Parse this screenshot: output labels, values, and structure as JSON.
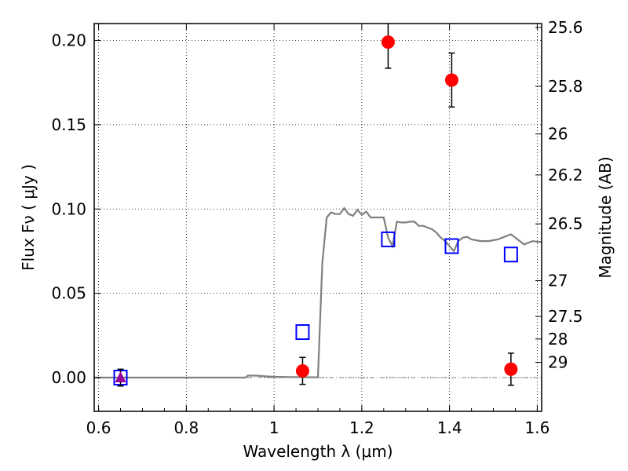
{
  "chart_data": {
    "type": "scatter",
    "xlabel": "Wavelength  λ (μm)",
    "ylabel": "Flux  Fν  ( μJy )",
    "ylabel_right": "Magnitude (AB)",
    "xlim": [
      0.59,
      1.61
    ],
    "ylim": [
      -0.02,
      0.21
    ],
    "grid": true,
    "x_ticks": [
      0.6,
      0.8,
      1.0,
      1.2,
      1.4,
      1.6
    ],
    "x_tick_labels": [
      "0.6",
      "0.8",
      "1",
      "1.2",
      "1.4",
      "1.6"
    ],
    "y_ticks": [
      0.0,
      0.05,
      0.1,
      0.15,
      0.2
    ],
    "y_tick_labels": [
      "0.00",
      "0.05",
      "0.10",
      "0.15",
      "0.20"
    ],
    "right_ticks": [
      {
        "label": "25.6",
        "flux": 0.2077
      },
      {
        "label": "25.8",
        "flux": 0.1728
      },
      {
        "label": "26",
        "flux": 0.1445
      },
      {
        "label": "26.2",
        "flux": 0.1202
      },
      {
        "label": "26.5",
        "flux": 0.0912
      },
      {
        "label": "27",
        "flux": 0.0575
      },
      {
        "label": "27.5",
        "flux": 0.0363
      },
      {
        "label": "28",
        "flux": 0.0229
      },
      {
        "label": "29",
        "flux": 0.0091
      }
    ],
    "series": [
      {
        "kind": "line",
        "color": "#808080",
        "points": [
          [
            0.59,
            0.0
          ],
          [
            0.7,
            0.0
          ],
          [
            0.8,
            0.0
          ],
          [
            0.9,
            0.0
          ],
          [
            0.935,
            0.0
          ],
          [
            0.94,
            0.0012
          ],
          [
            0.96,
            0.0012
          ],
          [
            0.98,
            0.0008
          ],
          [
            1.0,
            0.0005
          ],
          [
            1.04,
            0.0003
          ],
          [
            1.08,
            0.0002
          ],
          [
            1.1,
            0.0002
          ],
          [
            1.11,
            0.068
          ],
          [
            1.12,
            0.095
          ],
          [
            1.13,
            0.098
          ],
          [
            1.14,
            0.097
          ],
          [
            1.15,
            0.097
          ],
          [
            1.16,
            0.1005
          ],
          [
            1.17,
            0.097
          ],
          [
            1.18,
            0.096
          ],
          [
            1.19,
            0.0995
          ],
          [
            1.2,
            0.0965
          ],
          [
            1.21,
            0.0985
          ],
          [
            1.22,
            0.095
          ],
          [
            1.23,
            0.095
          ],
          [
            1.24,
            0.095
          ],
          [
            1.25,
            0.095
          ],
          [
            1.26,
            0.083
          ],
          [
            1.27,
            0.078
          ],
          [
            1.28,
            0.0925
          ],
          [
            1.29,
            0.092
          ],
          [
            1.3,
            0.092
          ],
          [
            1.31,
            0.0925
          ],
          [
            1.32,
            0.0925
          ],
          [
            1.33,
            0.09
          ],
          [
            1.34,
            0.09
          ],
          [
            1.35,
            0.089
          ],
          [
            1.36,
            0.088
          ],
          [
            1.37,
            0.086
          ],
          [
            1.38,
            0.083
          ],
          [
            1.39,
            0.081
          ],
          [
            1.4,
            0.078
          ],
          [
            1.41,
            0.075
          ],
          [
            1.42,
            0.081
          ],
          [
            1.43,
            0.083
          ],
          [
            1.44,
            0.0835
          ],
          [
            1.45,
            0.082
          ],
          [
            1.46,
            0.0815
          ],
          [
            1.47,
            0.081
          ],
          [
            1.48,
            0.081
          ],
          [
            1.49,
            0.081
          ],
          [
            1.5,
            0.0815
          ],
          [
            1.51,
            0.082
          ],
          [
            1.52,
            0.083
          ],
          [
            1.53,
            0.084
          ],
          [
            1.54,
            0.085
          ],
          [
            1.55,
            0.083
          ],
          [
            1.56,
            0.081
          ],
          [
            1.57,
            0.079
          ],
          [
            1.58,
            0.08
          ],
          [
            1.59,
            0.081
          ],
          [
            1.6,
            0.0805
          ],
          [
            1.61,
            0.0805
          ]
        ]
      },
      {
        "kind": "points",
        "marker": "circle",
        "color": "#ff0000",
        "points": [
          {
            "x": 1.065,
            "y": 0.004,
            "err": 0.008
          },
          {
            "x": 1.26,
            "y": 0.199,
            "err": 0.0155
          },
          {
            "x": 1.405,
            "y": 0.1765,
            "err": 0.016
          },
          {
            "x": 1.54,
            "y": 0.005,
            "err": 0.0095
          }
        ]
      },
      {
        "kind": "points",
        "marker": "square",
        "color": "#0000ff",
        "points": [
          {
            "x": 0.65,
            "y": 0.0
          },
          {
            "x": 1.065,
            "y": 0.027
          },
          {
            "x": 1.26,
            "y": 0.082
          },
          {
            "x": 1.405,
            "y": 0.078
          },
          {
            "x": 1.54,
            "y": 0.073
          }
        ]
      },
      {
        "kind": "points",
        "marker": "triangle",
        "color": "#990099",
        "points": [
          {
            "x": 0.65,
            "y": 0.0,
            "err": 0.005
          }
        ]
      }
    ],
    "zero_line_color": "#808080"
  }
}
